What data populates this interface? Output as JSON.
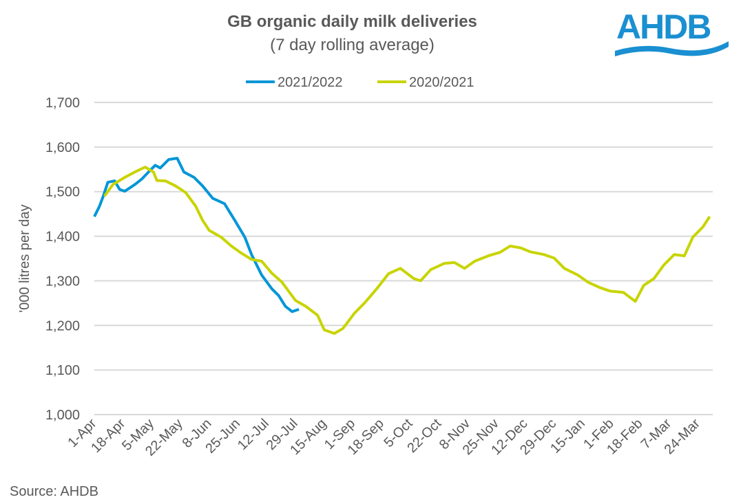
{
  "chart_data": {
    "type": "line",
    "title": "GB organic daily milk deliveries",
    "subtitle": "(7 day rolling average)",
    "ylabel": "'000 litres per day",
    "xlabel": "",
    "ylim": [
      1000,
      1700
    ],
    "yticks": [
      "1,000",
      "1,100",
      "1,200",
      "1,300",
      "1,400",
      "1,500",
      "1,600",
      "1,700"
    ],
    "yticks_values": [
      1000,
      1100,
      1200,
      1300,
      1400,
      1500,
      1600,
      1700
    ],
    "xticks": [
      "1-Apr",
      "18-Apr",
      "5-May",
      "22-May",
      "8-Jun",
      "25-Jun",
      "12-Jul",
      "29-Jul",
      "15-Aug",
      "1-Sep",
      "18-Sep",
      "5-Oct",
      "22-Oct",
      "8-Nov",
      "25-Nov",
      "12-Dec",
      "29-Dec",
      "15-Jan",
      "1-Feb",
      "18-Feb",
      "7-Mar",
      "24-Mar"
    ],
    "grid": true,
    "legend_position": "top",
    "series": [
      {
        "name": "2021/2022",
        "color": "#0096d6",
        "x": [
          "1-Apr",
          "4-Apr",
          "6-Apr",
          "9-Apr",
          "13-Apr",
          "16-Apr",
          "19-Apr",
          "25-Apr",
          "29-Apr",
          "3-May",
          "7-May",
          "10-May",
          "15-May",
          "20-May",
          "24-May",
          "30-May",
          "4-Jun",
          "10-Jun",
          "17-Jun",
          "23-Jun",
          "29-Jun",
          "3-Jul",
          "9-Jul",
          "15-Jul",
          "19-Jul",
          "23-Jul",
          "27-Jul",
          "31-Jul"
        ],
        "y": [
          1444,
          1467,
          1487,
          1521,
          1524,
          1505,
          1501,
          1516,
          1528,
          1544,
          1559,
          1553,
          1572,
          1575,
          1544,
          1532,
          1513,
          1485,
          1473,
          1436,
          1398,
          1359,
          1313,
          1282,
          1267,
          1243,
          1231,
          1236
        ]
      },
      {
        "name": "2020/2021",
        "color": "#c8d400",
        "x": [
          "7-Apr",
          "12-Apr",
          "19-Apr",
          "25-Apr",
          "1-May",
          "6-May",
          "8-May",
          "13-May",
          "19-May",
          "25-May",
          "31-May",
          "4-Jun",
          "8-Jun",
          "15-Jun",
          "21-Jun",
          "27-Jun",
          "3-Jul",
          "9-Jul",
          "15-Jul",
          "21-Jul",
          "29-Jul",
          "4-Aug",
          "11-Aug",
          "15-Aug",
          "21-Aug",
          "26-Aug",
          "2-Sep",
          "8-Sep",
          "15-Sep",
          "22-Sep",
          "29-Sep",
          "7-Oct",
          "11-Oct",
          "17-Oct",
          "25-Oct",
          "31-Oct",
          "6-Nov",
          "12-Nov",
          "20-Nov",
          "27-Nov",
          "3-Dec",
          "9-Dec",
          "15-Dec",
          "23-Dec",
          "29-Dec",
          "4-Jan",
          "12-Jan",
          "18-Jan",
          "25-Jan",
          "31-Jan",
          "8-Feb",
          "15-Feb",
          "20-Feb",
          "26-Feb",
          "4-Mar",
          "10-Mar",
          "16-Mar",
          "21-Mar",
          "27-Mar",
          "31-Mar"
        ],
        "y": [
          1490,
          1516,
          1532,
          1544,
          1555,
          1544,
          1525,
          1524,
          1513,
          1498,
          1467,
          1436,
          1413,
          1398,
          1378,
          1362,
          1348,
          1344,
          1317,
          1297,
          1256,
          1243,
          1223,
          1190,
          1182,
          1193,
          1228,
          1251,
          1282,
          1316,
          1328,
          1305,
          1300,
          1325,
          1339,
          1341,
          1328,
          1344,
          1356,
          1364,
          1378,
          1374,
          1365,
          1359,
          1351,
          1328,
          1313,
          1297,
          1285,
          1277,
          1274,
          1254,
          1290,
          1305,
          1336,
          1359,
          1356,
          1398,
          1421,
          1444
        ]
      }
    ]
  },
  "source": "Source: AHDB",
  "logo": {
    "text": "AHDB",
    "color": "#1a8fd1"
  }
}
